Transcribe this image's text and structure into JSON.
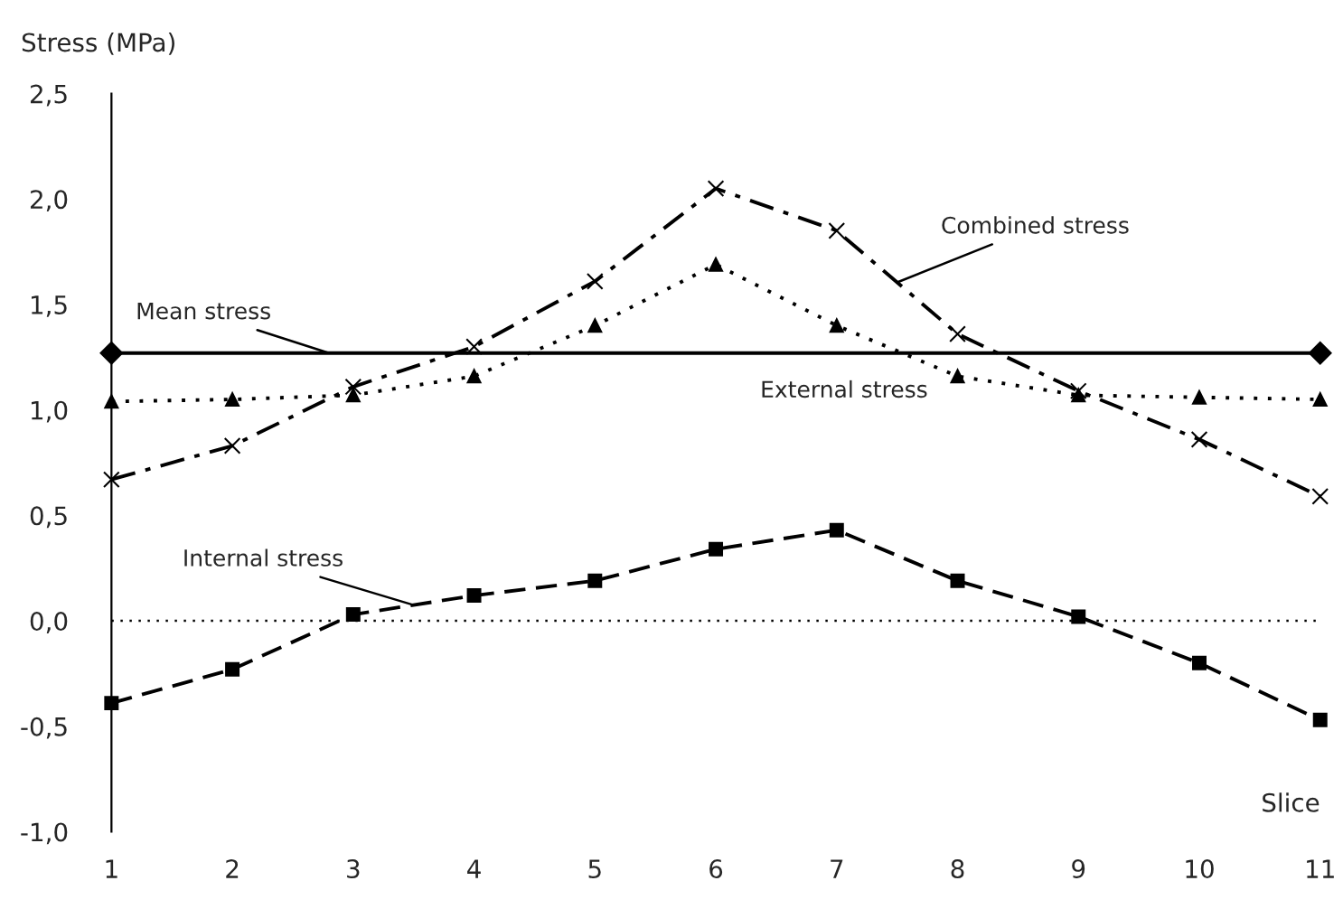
{
  "chart_data": {
    "type": "line",
    "ylabel": "Stress (MPa)",
    "xlabel": "Slice",
    "x": [
      1,
      2,
      3,
      4,
      5,
      6,
      7,
      8,
      9,
      10,
      11
    ],
    "xlim": [
      1,
      11
    ],
    "xticks": [
      1,
      2,
      3,
      4,
      5,
      6,
      7,
      8,
      9,
      10,
      11
    ],
    "ylim": [
      -1.0,
      2.5
    ],
    "yticks": [
      {
        "value": -1.0,
        "label": "-1,0"
      },
      {
        "value": -0.5,
        "label": "-0,5"
      },
      {
        "value": 0.0,
        "label": "0,0"
      },
      {
        "value": 0.5,
        "label": "0,5"
      },
      {
        "value": 1.0,
        "label": "1,0"
      },
      {
        "value": 1.5,
        "label": "1,5"
      },
      {
        "value": 2.0,
        "label": "2,0"
      },
      {
        "value": 2.5,
        "label": "2,5"
      }
    ],
    "grid": false,
    "legend": false,
    "ref_lines": [
      {
        "axis": "y",
        "value": 0.0,
        "label": null,
        "color": "#000000",
        "line_style": "dotted"
      }
    ],
    "series": [
      {
        "name": "Mean stress",
        "color": "#000000",
        "x": [
          1,
          11
        ],
        "values": [
          1.27,
          1.27
        ],
        "marker": "diamond",
        "line_style": "solid"
      },
      {
        "name": "Combined stress",
        "color": "#000000",
        "values": [
          0.67,
          0.83,
          1.11,
          1.3,
          1.61,
          2.05,
          1.85,
          1.36,
          1.09,
          0.86,
          0.59
        ],
        "marker": "cross",
        "line_style": "dashdot"
      },
      {
        "name": "External stress",
        "color": "#000000",
        "values": [
          1.04,
          1.05,
          1.07,
          1.16,
          1.4,
          1.69,
          1.4,
          1.16,
          1.07,
          1.06,
          1.05
        ],
        "marker": "triangle",
        "line_style": "dotted"
      },
      {
        "name": "Internal stress",
        "color": "#000000",
        "values": [
          -0.39,
          -0.23,
          0.03,
          0.12,
          0.19,
          0.34,
          0.43,
          0.19,
          0.02,
          -0.2,
          -0.47
        ],
        "marker": "square",
        "line_style": "dashed"
      }
    ]
  }
}
